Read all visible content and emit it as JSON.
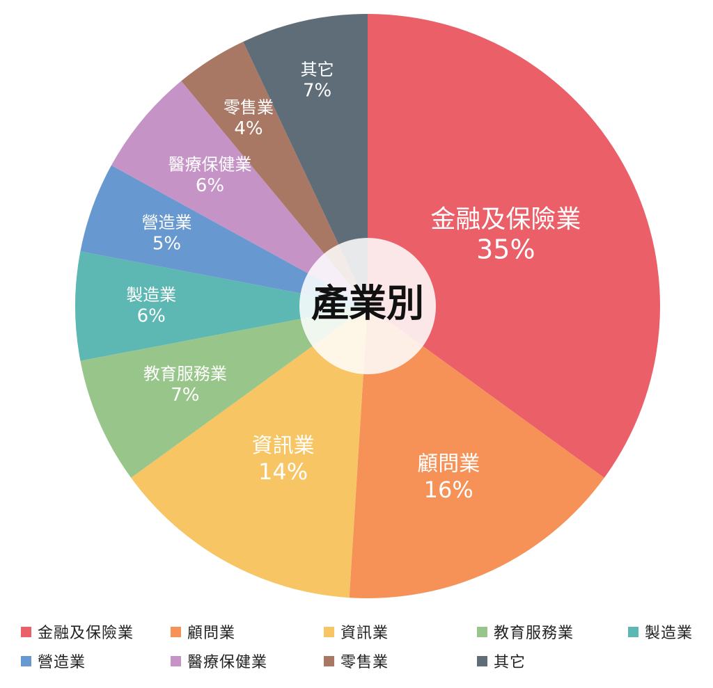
{
  "chart_data": {
    "type": "pie",
    "title": "產業別",
    "donut_center": true,
    "slices": [
      {
        "label": "金融及保險業",
        "value": 35,
        "value_label": "35%",
        "color": "#EA5F68"
      },
      {
        "label": "顧問業",
        "value": 16,
        "value_label": "16%",
        "color": "#F69158"
      },
      {
        "label": "資訊業",
        "value": 14,
        "value_label": "14%",
        "color": "#F7C564"
      },
      {
        "label": "教育服務業",
        "value": 7,
        "value_label": "7%",
        "color": "#98C68A"
      },
      {
        "label": "製造業",
        "value": 6,
        "value_label": "6%",
        "color": "#5DB7B2"
      },
      {
        "label": "營造業",
        "value": 5,
        "value_label": "5%",
        "color": "#6798CF"
      },
      {
        "label": "醫療保健業",
        "value": 6,
        "value_label": "6%",
        "color": "#C593C6"
      },
      {
        "label": "零售業",
        "value": 4,
        "value_label": "4%",
        "color": "#A97865"
      },
      {
        "label": "其它",
        "value": 7,
        "value_label": "7%",
        "color": "#5F6D79"
      }
    ],
    "legend_position": "bottom"
  }
}
